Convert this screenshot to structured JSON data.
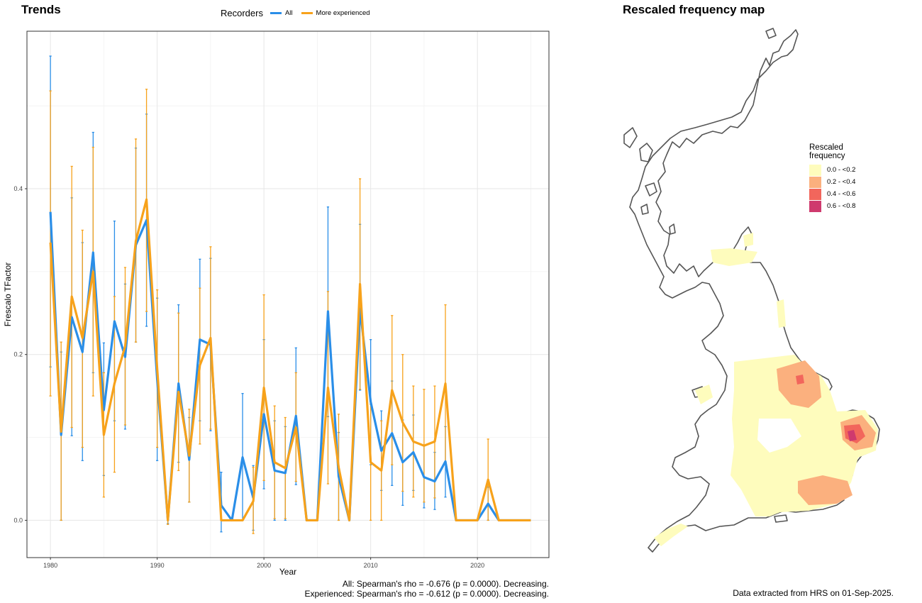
{
  "trends_title": "Trends",
  "map_title": "Rescaled frequency map",
  "legend": {
    "title": "Recorders",
    "items": [
      {
        "label": "All",
        "color": "#2a8ee8"
      },
      {
        "label": "More experienced",
        "color": "#f7a21b"
      }
    ]
  },
  "captions": {
    "all": "All: Spearman's rho = -0.676 (p = 0.0000). Decreasing.",
    "experienced": "Experienced: Spearman's rho = -0.612 (p = 0.0000). Decreasing."
  },
  "map_caption": "Data extracted from HRS on 01-Sep-2025.",
  "map_legend": {
    "title_line1": "Rescaled",
    "title_line2": "frequency",
    "items": [
      {
        "label": "0.0 - <0.2",
        "color": "#fefcbd"
      },
      {
        "label": "0.2 - <0.4",
        "color": "#fbb07e"
      },
      {
        "label": "0.4 - <0.6",
        "color": "#f2665c"
      },
      {
        "label": "0.6 - <0.8",
        "color": "#cf3a6e"
      }
    ]
  },
  "chart_data": {
    "type": "line",
    "title": "Trends",
    "xlabel": "Year",
    "ylabel": "Frescalo TFactor",
    "xlim": [
      1977.8,
      2026.7
    ],
    "ylim": [
      -0.045,
      0.59
    ],
    "xticks": [
      1980,
      1990,
      2000,
      2010,
      2020
    ],
    "yticks": [
      0.0,
      0.2,
      0.4
    ],
    "ytick_labels": [
      "0.0",
      "0.2",
      "0.4"
    ],
    "grid": true,
    "legend_position": "top",
    "series": [
      {
        "name": "All",
        "color": "#2a8ee8",
        "points": [
          {
            "x": 1980,
            "y": 0.372,
            "lo": 0.185,
            "hi": 0.56
          },
          {
            "x": 1981,
            "y": 0.103,
            "lo": 0.0,
            "hi": 0.203
          },
          {
            "x": 1982,
            "y": 0.245,
            "lo": 0.102,
            "hi": 0.389
          },
          {
            "x": 1983,
            "y": 0.203,
            "lo": 0.072,
            "hi": 0.335
          },
          {
            "x": 1984,
            "y": 0.323,
            "lo": 0.178,
            "hi": 0.468
          },
          {
            "x": 1985,
            "y": 0.133,
            "lo": 0.054,
            "hi": 0.214
          },
          {
            "x": 1986,
            "y": 0.24,
            "lo": 0.12,
            "hi": 0.361
          },
          {
            "x": 1987,
            "y": 0.197,
            "lo": 0.11,
            "hi": 0.285
          },
          {
            "x": 1988,
            "y": 0.332,
            "lo": 0.215,
            "hi": 0.449
          },
          {
            "x": 1989,
            "y": 0.362,
            "lo": 0.234,
            "hi": 0.49
          },
          {
            "x": 1990,
            "y": 0.17,
            "lo": 0.072,
            "hi": 0.268
          },
          {
            "x": 1991,
            "y": 0.0,
            "lo": -0.004,
            "hi": 0.004
          },
          {
            "x": 1992,
            "y": 0.165,
            "lo": 0.07,
            "hi": 0.26
          },
          {
            "x": 1993,
            "y": 0.073,
            "lo": 0.022,
            "hi": 0.124
          },
          {
            "x": 1994,
            "y": 0.218,
            "lo": 0.12,
            "hi": 0.315
          },
          {
            "x": 1995,
            "y": 0.212,
            "lo": 0.108,
            "hi": 0.316
          },
          {
            "x": 1996,
            "y": 0.018,
            "lo": -0.014,
            "hi": 0.058
          },
          {
            "x": 1997,
            "y": 0.0,
            "lo": 0.0,
            "hi": 0.0
          },
          {
            "x": 1998,
            "y": 0.076,
            "lo": 0.0,
            "hi": 0.153
          },
          {
            "x": 1999,
            "y": 0.027,
            "lo": -0.012,
            "hi": 0.066
          },
          {
            "x": 2000,
            "y": 0.128,
            "lo": 0.038,
            "hi": 0.218
          },
          {
            "x": 2001,
            "y": 0.06,
            "lo": 0.0,
            "hi": 0.12
          },
          {
            "x": 2002,
            "y": 0.057,
            "lo": 0.0,
            "hi": 0.113
          },
          {
            "x": 2003,
            "y": 0.126,
            "lo": 0.043,
            "hi": 0.208
          },
          {
            "x": 2004,
            "y": 0.0,
            "lo": 0.0,
            "hi": 0.0
          },
          {
            "x": 2005,
            "y": 0.0,
            "lo": 0.0,
            "hi": 0.0
          },
          {
            "x": 2006,
            "y": 0.252,
            "lo": 0.125,
            "hi": 0.378
          },
          {
            "x": 2007,
            "y": 0.053,
            "lo": 0.0,
            "hi": 0.106
          },
          {
            "x": 2008,
            "y": 0.0,
            "lo": 0.0,
            "hi": 0.0
          },
          {
            "x": 2009,
            "y": 0.255,
            "lo": 0.157,
            "hi": 0.357
          },
          {
            "x": 2010,
            "y": 0.143,
            "lo": 0.067,
            "hi": 0.218
          },
          {
            "x": 2011,
            "y": 0.084,
            "lo": 0.036,
            "hi": 0.132
          },
          {
            "x": 2012,
            "y": 0.105,
            "lo": 0.042,
            "hi": 0.168
          },
          {
            "x": 2013,
            "y": 0.07,
            "lo": 0.018,
            "hi": 0.121
          },
          {
            "x": 2014,
            "y": 0.082,
            "lo": 0.036,
            "hi": 0.127
          },
          {
            "x": 2015,
            "y": 0.052,
            "lo": 0.015,
            "hi": 0.09
          },
          {
            "x": 2016,
            "y": 0.047,
            "lo": 0.013,
            "hi": 0.082
          },
          {
            "x": 2017,
            "y": 0.071,
            "lo": 0.028,
            "hi": 0.113
          },
          {
            "x": 2018,
            "y": 0.0,
            "lo": 0.0,
            "hi": 0.0
          },
          {
            "x": 2019,
            "y": 0.0,
            "lo": 0.0,
            "hi": 0.0
          },
          {
            "x": 2020,
            "y": 0.0,
            "lo": 0.0,
            "hi": 0.0
          },
          {
            "x": 2021,
            "y": 0.02,
            "lo": 0.0,
            "hi": 0.04
          },
          {
            "x": 2022,
            "y": 0.0,
            "lo": 0.0,
            "hi": 0.0
          },
          {
            "x": 2023,
            "y": 0.0,
            "lo": 0.0,
            "hi": 0.0
          },
          {
            "x": 2024,
            "y": 0.0,
            "lo": 0.0,
            "hi": 0.0
          },
          {
            "x": 2025,
            "y": 0.0,
            "lo": 0.0,
            "hi": 0.0
          }
        ]
      },
      {
        "name": "More experienced",
        "color": "#f7a21b",
        "points": [
          {
            "x": 1980,
            "y": 0.335,
            "lo": 0.15,
            "hi": 0.518
          },
          {
            "x": 1981,
            "y": 0.107,
            "lo": 0.0,
            "hi": 0.215
          },
          {
            "x": 1982,
            "y": 0.27,
            "lo": 0.112,
            "hi": 0.427
          },
          {
            "x": 1983,
            "y": 0.22,
            "lo": 0.088,
            "hi": 0.35
          },
          {
            "x": 1984,
            "y": 0.3,
            "lo": 0.15,
            "hi": 0.45
          },
          {
            "x": 1985,
            "y": 0.103,
            "lo": 0.028,
            "hi": 0.178
          },
          {
            "x": 1986,
            "y": 0.165,
            "lo": 0.058,
            "hi": 0.27
          },
          {
            "x": 1987,
            "y": 0.21,
            "lo": 0.115,
            "hi": 0.305
          },
          {
            "x": 1988,
            "y": 0.337,
            "lo": 0.215,
            "hi": 0.46
          },
          {
            "x": 1989,
            "y": 0.387,
            "lo": 0.252,
            "hi": 0.52
          },
          {
            "x": 1990,
            "y": 0.183,
            "lo": 0.088,
            "hi": 0.278
          },
          {
            "x": 1991,
            "y": 0.0,
            "lo": -0.005,
            "hi": 0.006
          },
          {
            "x": 1992,
            "y": 0.155,
            "lo": 0.06,
            "hi": 0.25
          },
          {
            "x": 1993,
            "y": 0.078,
            "lo": 0.022,
            "hi": 0.134
          },
          {
            "x": 1994,
            "y": 0.187,
            "lo": 0.092,
            "hi": 0.28
          },
          {
            "x": 1995,
            "y": 0.22,
            "lo": 0.11,
            "hi": 0.33
          },
          {
            "x": 1996,
            "y": 0.0,
            "lo": 0.0,
            "hi": 0.0
          },
          {
            "x": 1997,
            "y": 0.0,
            "lo": 0.0,
            "hi": 0.0
          },
          {
            "x": 1998,
            "y": 0.0,
            "lo": 0.0,
            "hi": 0.0
          },
          {
            "x": 1999,
            "y": 0.023,
            "lo": -0.016,
            "hi": 0.064
          },
          {
            "x": 2000,
            "y": 0.16,
            "lo": 0.048,
            "hi": 0.272
          },
          {
            "x": 2001,
            "y": 0.07,
            "lo": 0.002,
            "hi": 0.138
          },
          {
            "x": 2002,
            "y": 0.063,
            "lo": 0.002,
            "hi": 0.124
          },
          {
            "x": 2003,
            "y": 0.112,
            "lo": 0.047,
            "hi": 0.178
          },
          {
            "x": 2004,
            "y": 0.0,
            "lo": 0.0,
            "hi": 0.0
          },
          {
            "x": 2005,
            "y": 0.0,
            "lo": 0.0,
            "hi": 0.0
          },
          {
            "x": 2006,
            "y": 0.16,
            "lo": 0.044,
            "hi": 0.276
          },
          {
            "x": 2007,
            "y": 0.064,
            "lo": 0.0,
            "hi": 0.128
          },
          {
            "x": 2008,
            "y": 0.0,
            "lo": 0.0,
            "hi": 0.0
          },
          {
            "x": 2009,
            "y": 0.285,
            "lo": 0.158,
            "hi": 0.412
          },
          {
            "x": 2010,
            "y": 0.07,
            "lo": 0.0,
            "hi": 0.14
          },
          {
            "x": 2011,
            "y": 0.06,
            "lo": 0.0,
            "hi": 0.12
          },
          {
            "x": 2012,
            "y": 0.157,
            "lo": 0.067,
            "hi": 0.247
          },
          {
            "x": 2013,
            "y": 0.118,
            "lo": 0.035,
            "hi": 0.2
          },
          {
            "x": 2014,
            "y": 0.095,
            "lo": 0.028,
            "hi": 0.162
          },
          {
            "x": 2015,
            "y": 0.09,
            "lo": 0.022,
            "hi": 0.158
          },
          {
            "x": 2016,
            "y": 0.095,
            "lo": 0.027,
            "hi": 0.162
          },
          {
            "x": 2017,
            "y": 0.165,
            "lo": 0.07,
            "hi": 0.26
          },
          {
            "x": 2018,
            "y": 0.0,
            "lo": 0.0,
            "hi": 0.0
          },
          {
            "x": 2019,
            "y": 0.0,
            "lo": 0.0,
            "hi": 0.0
          },
          {
            "x": 2020,
            "y": 0.0,
            "lo": 0.0,
            "hi": 0.0
          },
          {
            "x": 2021,
            "y": 0.049,
            "lo": 0.0,
            "hi": 0.098
          },
          {
            "x": 2022,
            "y": 0.0,
            "lo": 0.0,
            "hi": 0.0
          },
          {
            "x": 2023,
            "y": 0.0,
            "lo": 0.0,
            "hi": 0.0
          },
          {
            "x": 2024,
            "y": 0.0,
            "lo": 0.0,
            "hi": 0.0
          },
          {
            "x": 2025,
            "y": 0.0,
            "lo": 0.0,
            "hi": 0.0
          }
        ]
      }
    ]
  }
}
